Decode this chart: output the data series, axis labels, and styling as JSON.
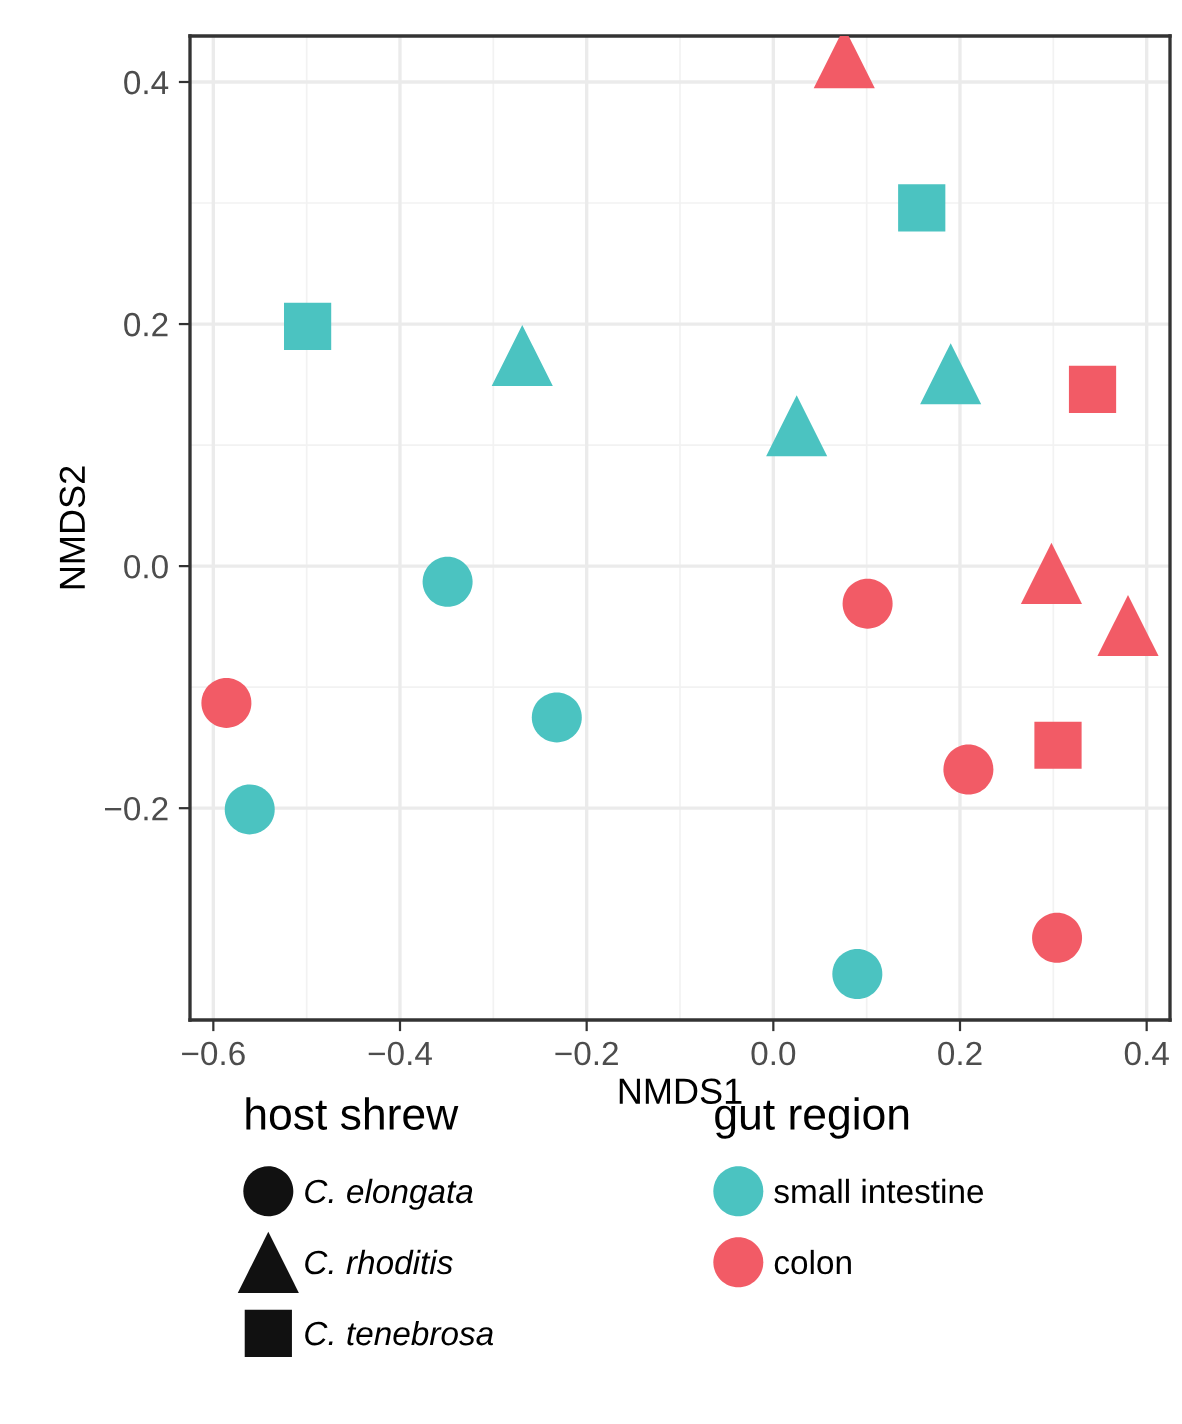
{
  "chart_data": {
    "type": "scatter",
    "xlabel": "NMDS1",
    "ylabel": "NMDS2",
    "xlim": [
      -0.625,
      0.425
    ],
    "ylim": [
      -0.375,
      0.438
    ],
    "xticks": [
      {
        "value": -0.6,
        "label": "−0.6"
      },
      {
        "value": -0.4,
        "label": "−0.4"
      },
      {
        "value": -0.2,
        "label": "−0.2"
      },
      {
        "value": 0.0,
        "label": "0.0"
      },
      {
        "value": 0.2,
        "label": "0.2"
      },
      {
        "value": 0.4,
        "label": "0.4"
      }
    ],
    "yticks": [
      {
        "value": -0.2,
        "label": "−0.2"
      },
      {
        "value": 0.0,
        "label": "0.0"
      },
      {
        "value": 0.2,
        "label": "0.2"
      },
      {
        "value": 0.4,
        "label": "0.4"
      }
    ],
    "grid": true,
    "legend": "bottom",
    "legend_title": [
      "host shrew",
      "gut region"
    ],
    "series": [
      {
        "color": "#4bc3c1",
        "marker": "circle",
        "x": [
          -0.349,
          -0.232,
          -0.561,
          0.09
        ],
        "values": [
          -0.013,
          -0.125,
          -0.201,
          -0.337
        ]
      },
      {
        "color": "#f25b66",
        "marker": "circle",
        "x": [
          -0.586,
          0.101,
          0.209,
          0.304
        ],
        "values": [
          -0.113,
          -0.031,
          -0.168,
          -0.307
        ]
      },
      {
        "color": "#4bc3c1",
        "marker": "triangle",
        "x": [
          -0.269,
          0.025,
          0.19
        ],
        "values": [
          0.174,
          0.116,
          0.159
        ]
      },
      {
        "color": "#f25b66",
        "marker": "triangle",
        "x": [
          0.076,
          0.298,
          0.38
        ],
        "values": [
          0.42,
          -0.006,
          -0.049
        ]
      },
      {
        "color": "#4bc3c1",
        "marker": "square",
        "x": [
          -0.499,
          0.159
        ],
        "values": [
          0.198,
          0.296
        ]
      },
      {
        "color": "#f25b66",
        "marker": "square",
        "x": [
          0.342,
          0.305
        ],
        "values": [
          0.146,
          -0.148
        ]
      },
      {
        "name": "C. elongata",
        "color": "#111111",
        "marker": "circle"
      },
      {
        "name": "C. rhoditis",
        "color": "#111111",
        "marker": "triangle"
      },
      {
        "name": "C. tenebrosa",
        "color": "#111111",
        "marker": "square"
      },
      {
        "name": "small intestine",
        "color": "#4bc3c1",
        "marker": "circle"
      },
      {
        "name": "colon",
        "color": "#f25b66",
        "marker": "circle"
      }
    ]
  }
}
